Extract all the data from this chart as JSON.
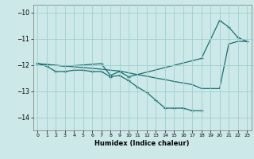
{
  "xlabel": "Humidex (Indice chaleur)",
  "background_color": "#cce8e8",
  "grid_color": "#9fcfcf",
  "line_color": "#1a7070",
  "xlim": [
    -0.5,
    23.5
  ],
  "ylim": [
    -14.5,
    -9.7
  ],
  "yticks": [
    -14,
    -13,
    -12,
    -11,
    -10
  ],
  "xticks": [
    0,
    1,
    2,
    3,
    4,
    5,
    6,
    7,
    8,
    9,
    10,
    11,
    12,
    13,
    14,
    15,
    16,
    17,
    18,
    19,
    20,
    21,
    22,
    23
  ],
  "line1_x": [
    0,
    1,
    2,
    3,
    4,
    5,
    6,
    7,
    8,
    9,
    10,
    11,
    12,
    13,
    14,
    15,
    16,
    17,
    18
  ],
  "line1_y": [
    -11.95,
    -12.05,
    -12.25,
    -12.25,
    -12.2,
    -12.2,
    -12.25,
    -12.25,
    -12.45,
    -12.4,
    -12.6,
    -12.85,
    -13.05,
    -13.35,
    -13.65,
    -13.65,
    -13.65,
    -13.75,
    -13.75
  ],
  "line2_x": [
    0,
    1,
    2,
    3,
    4,
    5,
    6,
    7,
    8,
    9,
    10,
    11,
    12,
    13,
    14,
    15,
    16,
    17,
    18,
    19,
    20,
    21,
    22,
    23
  ],
  "line2_y": [
    -11.95,
    -11.98,
    -12.01,
    -12.04,
    -12.07,
    -12.1,
    -12.13,
    -12.16,
    -12.2,
    -12.23,
    -12.3,
    -12.37,
    -12.43,
    -12.5,
    -12.56,
    -12.63,
    -12.69,
    -12.75,
    -12.9,
    -12.9,
    -12.9,
    -11.2,
    -11.1,
    -11.1
  ],
  "line3_x": [
    0,
    3,
    7,
    8,
    9,
    10,
    18,
    20,
    21,
    22,
    23
  ],
  "line3_y": [
    -11.95,
    -12.05,
    -11.95,
    -12.4,
    -12.25,
    -12.45,
    -11.75,
    -10.3,
    -10.55,
    -10.95,
    -11.1
  ],
  "marker_x1": [
    0,
    1,
    2,
    3,
    4,
    5,
    6,
    7,
    8,
    9,
    10,
    11,
    12,
    13,
    14,
    15,
    16,
    17,
    18
  ],
  "marker_y1": [
    -11.95,
    -12.05,
    -12.25,
    -12.25,
    -12.2,
    -12.2,
    -12.25,
    -12.25,
    -12.45,
    -12.4,
    -12.6,
    -12.85,
    -13.05,
    -13.35,
    -13.65,
    -13.65,
    -13.65,
    -13.75,
    -13.75
  ],
  "marker_x3": [
    0,
    3,
    7,
    8,
    9,
    10,
    18,
    20,
    21,
    22,
    23
  ],
  "marker_y3": [
    -11.95,
    -12.05,
    -11.95,
    -12.4,
    -12.25,
    -12.45,
    -11.75,
    -10.3,
    -10.55,
    -10.95,
    -11.1
  ]
}
